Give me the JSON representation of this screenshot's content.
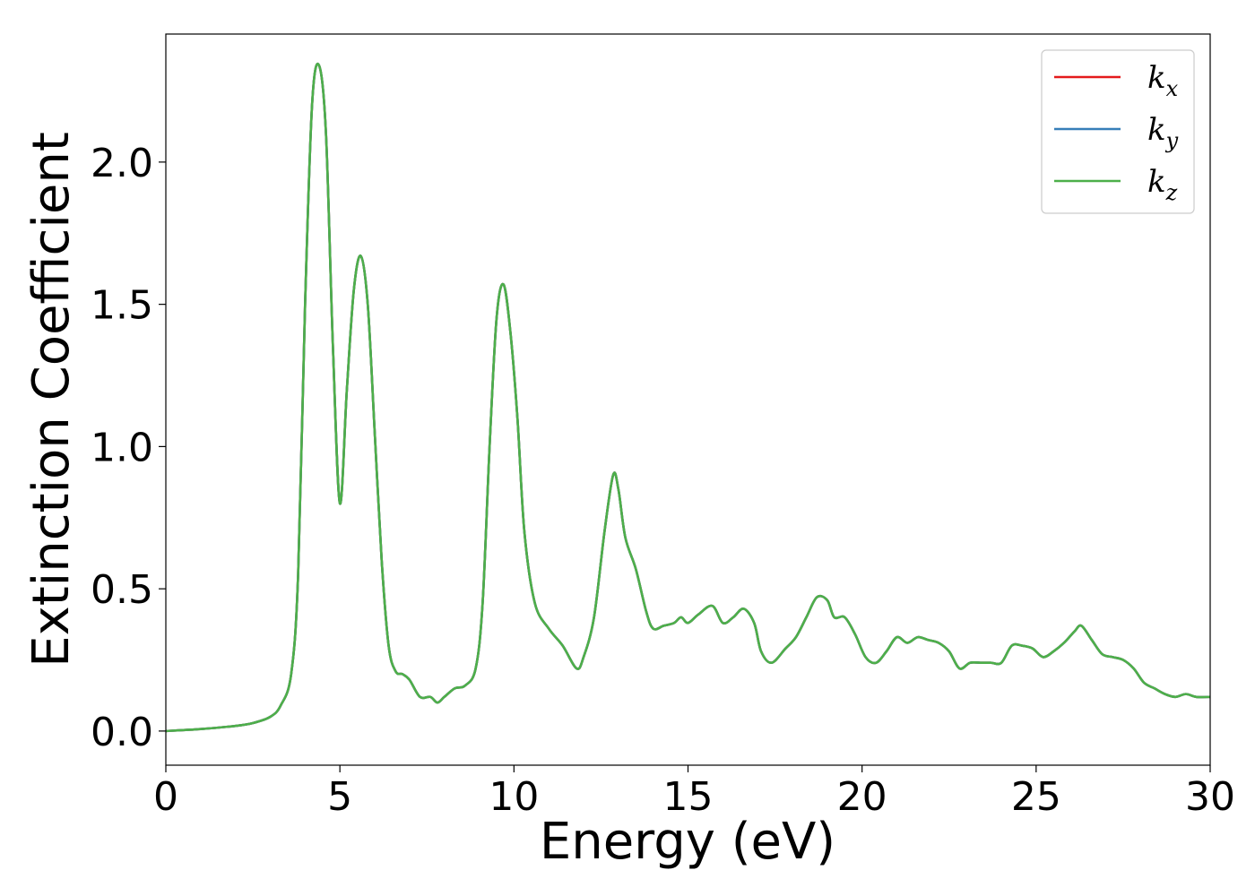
{
  "chart_data": {
    "type": "line",
    "xlabel": "Energy (eV)",
    "ylabel": "Extinction Coefficient",
    "xlim": [
      0,
      30
    ],
    "ylim": [
      -0.12,
      2.45
    ],
    "xticks": [
      0,
      5,
      10,
      15,
      20,
      25,
      30
    ],
    "xtick_labels": [
      "0",
      "5",
      "10",
      "15",
      "20",
      "25",
      "30"
    ],
    "yticks": [
      0.0,
      0.5,
      1.0,
      1.5,
      2.0
    ],
    "ytick_labels": [
      "0.0",
      "0.5",
      "1.0",
      "1.5",
      "2.0"
    ],
    "grid": false,
    "legend_position": "top-right",
    "x": [
      0,
      1,
      2,
      2.5,
      3,
      3.3,
      3.6,
      3.8,
      4.0,
      4.2,
      4.4,
      4.6,
      4.8,
      5.0,
      5.2,
      5.4,
      5.6,
      5.8,
      6.0,
      6.2,
      6.4,
      6.6,
      6.8,
      7.0,
      7.3,
      7.6,
      7.8,
      8.0,
      8.3,
      8.6,
      8.9,
      9.1,
      9.3,
      9.5,
      9.7,
      9.9,
      10.1,
      10.3,
      10.6,
      11.0,
      11.4,
      11.8,
      12.0,
      12.3,
      12.6,
      12.85,
      13.0,
      13.2,
      13.5,
      13.8,
      14.0,
      14.3,
      14.6,
      14.8,
      15.0,
      15.3,
      15.7,
      16.0,
      16.3,
      16.6,
      16.9,
      17.1,
      17.4,
      17.8,
      18.1,
      18.4,
      18.7,
      19.0,
      19.2,
      19.5,
      19.8,
      20.1,
      20.4,
      20.7,
      21.0,
      21.3,
      21.6,
      21.9,
      22.2,
      22.5,
      22.8,
      23.1,
      23.4,
      23.7,
      24.0,
      24.3,
      24.6,
      24.9,
      25.2,
      25.5,
      25.8,
      26.1,
      26.3,
      26.6,
      26.9,
      27.2,
      27.5,
      27.8,
      28.1,
      28.4,
      28.7,
      29.0,
      29.3,
      29.6,
      30.0
    ],
    "series": [
      {
        "name": "k_x",
        "color": "#e41a1c",
        "values": [
          0.0,
          0.007,
          0.018,
          0.028,
          0.05,
          0.09,
          0.2,
          0.55,
          1.5,
          2.2,
          2.34,
          2.1,
          1.35,
          0.8,
          1.2,
          1.55,
          1.67,
          1.5,
          1.05,
          0.6,
          0.3,
          0.21,
          0.2,
          0.18,
          0.12,
          0.12,
          0.1,
          0.12,
          0.15,
          0.16,
          0.22,
          0.45,
          1.0,
          1.45,
          1.57,
          1.4,
          1.1,
          0.7,
          0.45,
          0.36,
          0.3,
          0.22,
          0.26,
          0.4,
          0.7,
          0.9,
          0.85,
          0.68,
          0.57,
          0.42,
          0.36,
          0.37,
          0.38,
          0.4,
          0.38,
          0.41,
          0.44,
          0.38,
          0.4,
          0.43,
          0.38,
          0.28,
          0.24,
          0.29,
          0.33,
          0.4,
          0.47,
          0.46,
          0.4,
          0.4,
          0.34,
          0.26,
          0.24,
          0.28,
          0.33,
          0.31,
          0.33,
          0.32,
          0.31,
          0.28,
          0.22,
          0.24,
          0.24,
          0.24,
          0.24,
          0.3,
          0.3,
          0.29,
          0.26,
          0.28,
          0.31,
          0.35,
          0.37,
          0.32,
          0.27,
          0.26,
          0.25,
          0.22,
          0.17,
          0.15,
          0.13,
          0.12,
          0.13,
          0.12,
          0.12
        ]
      },
      {
        "name": "k_y",
        "color": "#377eb8",
        "values": [
          0.0,
          0.007,
          0.018,
          0.028,
          0.05,
          0.09,
          0.2,
          0.55,
          1.5,
          2.2,
          2.34,
          2.1,
          1.35,
          0.8,
          1.2,
          1.55,
          1.67,
          1.5,
          1.05,
          0.6,
          0.3,
          0.21,
          0.2,
          0.18,
          0.12,
          0.12,
          0.1,
          0.12,
          0.15,
          0.16,
          0.22,
          0.45,
          1.0,
          1.45,
          1.57,
          1.4,
          1.1,
          0.7,
          0.45,
          0.36,
          0.3,
          0.22,
          0.26,
          0.4,
          0.7,
          0.9,
          0.85,
          0.68,
          0.57,
          0.42,
          0.36,
          0.37,
          0.38,
          0.4,
          0.38,
          0.41,
          0.44,
          0.38,
          0.4,
          0.43,
          0.38,
          0.28,
          0.24,
          0.29,
          0.33,
          0.4,
          0.47,
          0.46,
          0.4,
          0.4,
          0.34,
          0.26,
          0.24,
          0.28,
          0.33,
          0.31,
          0.33,
          0.32,
          0.31,
          0.28,
          0.22,
          0.24,
          0.24,
          0.24,
          0.24,
          0.3,
          0.3,
          0.29,
          0.26,
          0.28,
          0.31,
          0.35,
          0.37,
          0.32,
          0.27,
          0.26,
          0.25,
          0.22,
          0.17,
          0.15,
          0.13,
          0.12,
          0.13,
          0.12,
          0.12
        ]
      },
      {
        "name": "k_z",
        "color": "#4daf4a",
        "values": [
          0.0,
          0.007,
          0.018,
          0.028,
          0.05,
          0.09,
          0.2,
          0.55,
          1.5,
          2.2,
          2.34,
          2.1,
          1.35,
          0.8,
          1.2,
          1.55,
          1.67,
          1.5,
          1.05,
          0.6,
          0.3,
          0.21,
          0.2,
          0.18,
          0.12,
          0.12,
          0.1,
          0.12,
          0.15,
          0.16,
          0.22,
          0.45,
          1.0,
          1.45,
          1.57,
          1.4,
          1.1,
          0.7,
          0.45,
          0.36,
          0.3,
          0.22,
          0.26,
          0.4,
          0.7,
          0.9,
          0.85,
          0.68,
          0.57,
          0.42,
          0.36,
          0.37,
          0.38,
          0.4,
          0.38,
          0.41,
          0.44,
          0.38,
          0.4,
          0.43,
          0.38,
          0.28,
          0.24,
          0.29,
          0.33,
          0.4,
          0.47,
          0.46,
          0.4,
          0.4,
          0.34,
          0.26,
          0.24,
          0.28,
          0.33,
          0.31,
          0.33,
          0.32,
          0.31,
          0.28,
          0.22,
          0.24,
          0.24,
          0.24,
          0.24,
          0.3,
          0.3,
          0.29,
          0.26,
          0.28,
          0.31,
          0.35,
          0.37,
          0.32,
          0.27,
          0.26,
          0.25,
          0.22,
          0.17,
          0.15,
          0.13,
          0.12,
          0.13,
          0.12,
          0.12
        ]
      }
    ],
    "legend": [
      {
        "base": "k",
        "sub": "x",
        "color": "#e41a1c"
      },
      {
        "base": "k",
        "sub": "y",
        "color": "#377eb8"
      },
      {
        "base": "k",
        "sub": "z",
        "color": "#4daf4a"
      }
    ]
  }
}
